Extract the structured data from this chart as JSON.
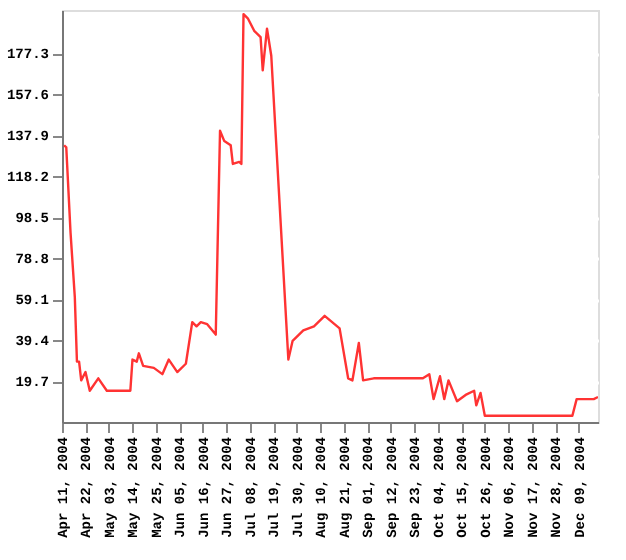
{
  "chart_data": {
    "type": "line",
    "x": [
      "2004-04-12",
      "2004-04-13",
      "2004-04-15",
      "2004-04-17",
      "2004-04-18",
      "2004-04-19",
      "2004-04-20",
      "2004-04-22",
      "2004-04-24",
      "2004-04-28",
      "2004-05-02",
      "2004-05-13",
      "2004-05-14",
      "2004-05-16",
      "2004-05-17",
      "2004-05-19",
      "2004-05-24",
      "2004-05-28",
      "2004-05-31",
      "2004-06-04",
      "2004-06-08",
      "2004-06-11",
      "2004-06-13",
      "2004-06-15",
      "2004-06-18",
      "2004-06-22",
      "2004-06-24",
      "2004-06-26",
      "2004-06-29",
      "2004-06-30",
      "2004-07-03",
      "2004-07-04",
      "2004-07-05",
      "2004-07-07",
      "2004-07-10",
      "2004-07-13",
      "2004-07-14",
      "2004-07-16",
      "2004-07-18",
      "2004-07-26",
      "2004-07-28",
      "2004-08-02",
      "2004-08-07",
      "2004-08-12",
      "2004-08-19",
      "2004-08-23",
      "2004-08-25",
      "2004-08-28",
      "2004-08-30",
      "2004-09-04",
      "2004-09-27",
      "2004-09-30",
      "2004-10-02",
      "2004-10-05",
      "2004-10-07",
      "2004-10-09",
      "2004-10-13",
      "2004-10-17",
      "2004-10-21",
      "2004-10-22",
      "2004-10-24",
      "2004-10-26",
      "2004-12-06",
      "2004-12-08",
      "2004-12-16",
      "2004-12-18"
    ],
    "series": [
      {
        "color": "#ff3333",
        "values": [
          133,
          132,
          91,
          60,
          29,
          29,
          20,
          24,
          15,
          21,
          15,
          15,
          30,
          29,
          33,
          27,
          26,
          23,
          30,
          24,
          28,
          48,
          46,
          48,
          47,
          42,
          140,
          135,
          133,
          124,
          125,
          124,
          196,
          194,
          188,
          185,
          169,
          189,
          176,
          30,
          39,
          44,
          46,
          51,
          45,
          21,
          20,
          38,
          20,
          21,
          21,
          23,
          11,
          22,
          11,
          20,
          10,
          13,
          15,
          8,
          14,
          3,
          3,
          11,
          11,
          12
        ]
      }
    ],
    "xlim": [
      "2004-04-11",
      "2004-12-18"
    ],
    "xticks": [
      {
        "value": "2004-04-11",
        "label": "Apr 11, 2004"
      },
      {
        "value": "2004-04-22",
        "label": "Apr 22, 2004"
      },
      {
        "value": "2004-05-03",
        "label": "May 03, 2004"
      },
      {
        "value": "2004-05-14",
        "label": "May 14, 2004"
      },
      {
        "value": "2004-05-25",
        "label": "May 25, 2004"
      },
      {
        "value": "2004-06-05",
        "label": "Jun 05, 2004"
      },
      {
        "value": "2004-06-16",
        "label": "Jun 16, 2004"
      },
      {
        "value": "2004-06-27",
        "label": "Jun 27, 2004"
      },
      {
        "value": "2004-07-08",
        "label": "Jul 08, 2004"
      },
      {
        "value": "2004-07-19",
        "label": "Jul 19, 2004"
      },
      {
        "value": "2004-07-30",
        "label": "Jul 30, 2004"
      },
      {
        "value": "2004-08-10",
        "label": "Aug 10, 2004"
      },
      {
        "value": "2004-08-21",
        "label": "Aug 21, 2004"
      },
      {
        "value": "2004-09-01",
        "label": "Sep 01, 2004"
      },
      {
        "value": "2004-09-12",
        "label": "Sep 12, 2004"
      },
      {
        "value": "2004-09-23",
        "label": "Sep 23, 2004"
      },
      {
        "value": "2004-10-04",
        "label": "Oct 04, 2004"
      },
      {
        "value": "2004-10-15",
        "label": "Oct 15, 2004"
      },
      {
        "value": "2004-10-26",
        "label": "Oct 26, 2004"
      },
      {
        "value": "2004-11-06",
        "label": "Nov 06, 2004"
      },
      {
        "value": "2004-11-17",
        "label": "Nov 17, 2004"
      },
      {
        "value": "2004-11-28",
        "label": "Nov 28, 2004"
      },
      {
        "value": "2004-12-09",
        "label": "Dec 09, 2004"
      }
    ],
    "ylim": [
      0,
      198
    ],
    "yticks": [
      19.7,
      39.4,
      59.1,
      78.8,
      98.5,
      118.2,
      137.9,
      157.6,
      177.3
    ],
    "grid": "y",
    "marker": "none",
    "line_style": "solid"
  }
}
